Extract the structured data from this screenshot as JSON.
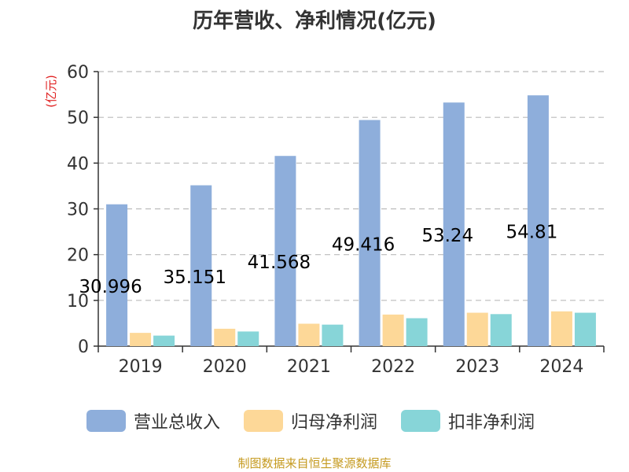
{
  "chart_data": {
    "type": "bar",
    "title": "历年营收、净利情况(亿元)",
    "ylabel": "(亿元)",
    "xlabel": "",
    "ylim": [
      0,
      60
    ],
    "yticks": [
      0,
      10,
      20,
      30,
      40,
      50,
      60
    ],
    "grid": true,
    "legend_position": "bottom",
    "categories": [
      "2019",
      "2020",
      "2021",
      "2022",
      "2023",
      "2024"
    ],
    "series": [
      {
        "name": "营业总收入",
        "color": "#8eaedb",
        "values": [
          30.996,
          35.151,
          41.568,
          49.416,
          53.24,
          54.81
        ],
        "labels": [
          "30.996",
          "35.151",
          "41.568",
          "49.416",
          "53.24",
          "54.81"
        ]
      },
      {
        "name": "归母净利润",
        "color": "#fdd898",
        "values": [
          2.9,
          3.8,
          4.9,
          6.9,
          7.3,
          7.6
        ]
      },
      {
        "name": "扣非净利润",
        "color": "#87d5d8",
        "values": [
          2.3,
          3.2,
          4.7,
          6.1,
          7.0,
          7.3
        ]
      }
    ]
  },
  "source_note": "制图数据来自恒生聚源数据库",
  "colors": {
    "axis": "#333333",
    "grid": "#bbbbbb",
    "ylabel": "#e02020",
    "source": "#c59a1f"
  }
}
